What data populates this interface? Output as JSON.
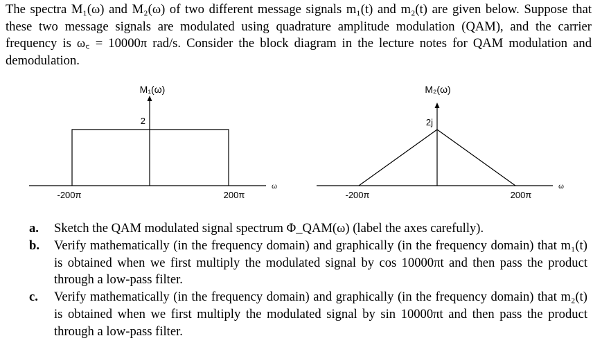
{
  "intro": {
    "text": "The spectra M₁(ω) and M₂(ω) of two different message signals m₁(t) and m₂(t) are given below. Suppose that these two message signals are modulated using quadrature amplitude modulation (QAM), and the carrier frequency is ω꜀ = 10000π rad/s. Consider the block diagram in the lecture notes for QAM modulation and demodulation."
  },
  "plot1": {
    "title": "M₁(ω)",
    "peak_label": "2",
    "left_tick": "-200π",
    "right_tick": "200π",
    "axis_label": "ω"
  },
  "plot2": {
    "title": "M₂(ω)",
    "peak_label": "2j",
    "left_tick": "-200π",
    "right_tick": "200π",
    "axis_label": "ω"
  },
  "questions": [
    {
      "letter": "a.",
      "text": "Sketch the QAM modulated signal spectrum Φ_QAM(ω) (label the axes carefully)."
    },
    {
      "letter": "b.",
      "text": "Verify mathematically (in the frequency domain) and graphically (in the frequency domain) that m₁(t) is obtained when we first multiply the modulated signal by cos 10000πt and then pass the product through a low-pass filter."
    },
    {
      "letter": "c.",
      "text": "Verify mathematically (in the frequency domain) and graphically (in the frequency domain) that m₂(t) is obtained when we first multiply the modulated signal by sin 10000πt and then pass the product through a low-pass filter."
    }
  ]
}
